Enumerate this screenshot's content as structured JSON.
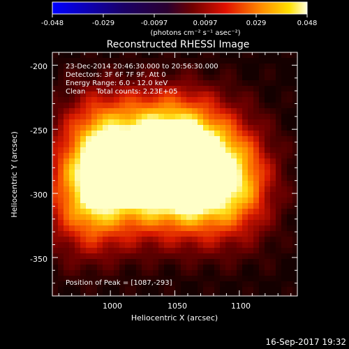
{
  "colorbar": {
    "ticks": [
      "-0.048",
      "-0.029",
      "-0.0097",
      "0.0097",
      "0.029",
      "0.048"
    ],
    "unit_label": "(photons cm⁻² s⁻¹ asec⁻²)"
  },
  "chart_data": {
    "type": "heatmap",
    "title": "Reconstructed RHESSI Image",
    "xlabel": "Heliocentric X (arcsec)",
    "ylabel": "Heliocentric Y (arcsec)",
    "xlim": [
      955,
      1145
    ],
    "ylim": [
      -380,
      -190
    ],
    "xticks": [
      "1000",
      "1050",
      "1100"
    ],
    "yticks": [
      "-200",
      "-250",
      "-300",
      "-350"
    ],
    "color_range": [
      -0.048,
      0.048
    ],
    "colormap": "RHESSI blue-black-red-yellow-white",
    "sources": [
      {
        "x": 975,
        "y": -305,
        "flux": 0.046
      },
      {
        "x": 1040,
        "y": -288,
        "flux": 0.044
      },
      {
        "x": 1087,
        "y": -293,
        "flux": 0.048
      },
      {
        "x": 1052,
        "y": -260,
        "flux": 0.04
      },
      {
        "x": 990,
        "y": -262,
        "flux": 0.038
      }
    ],
    "annotations": [
      "23-Dec-2014 20:46:30.000 to 20:56:30.000",
      "Detectors: 3F 6F 7F 9F, Att 0",
      "Energy Range: 6.0 - 12.0 keV",
      "Clean     Total counts: 2.23E+05",
      "Position of Peak = [1087,-293]"
    ]
  },
  "footer_timestamp": "16-Sep-2017 19:32"
}
